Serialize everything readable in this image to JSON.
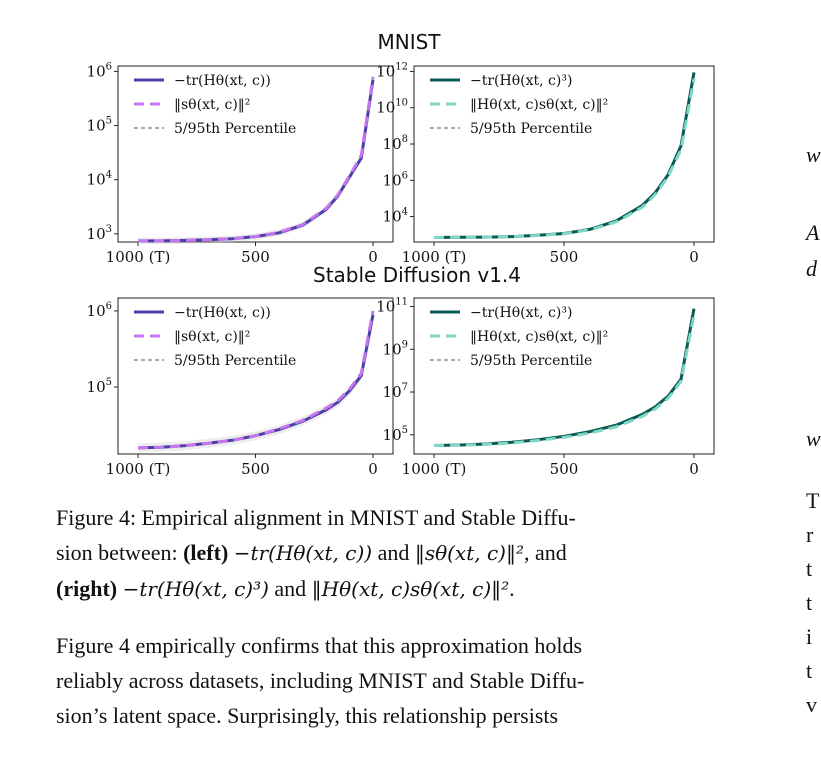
{
  "titles": {
    "mnist": "MNIST",
    "sd": "Stable Diffusion v1.4"
  },
  "chart_data": [
    {
      "type": "line",
      "x_ticks": [
        "1000 (T)",
        "500",
        "0"
      ],
      "xlim": [
        1000,
        0
      ],
      "y_scale": "log",
      "y_ticks": [
        "10^3",
        "10^4",
        "10^5",
        "10^6"
      ],
      "ylim_exp": [
        2.85,
        6.1
      ],
      "legend": [
        "−tr(Hθ(xt, c))",
        "‖sθ(xt, c)‖²",
        "5/95th Percentile"
      ],
      "series": [
        {
          "name": "−tr(Hθ(xt, c))",
          "color": "#4b3fa8",
          "x": [
            1000,
            900,
            800,
            700,
            600,
            500,
            400,
            300,
            200,
            150,
            100,
            50,
            0
          ],
          "y_exp": [
            2.87,
            2.87,
            2.88,
            2.89,
            2.91,
            2.95,
            3.02,
            3.16,
            3.45,
            3.7,
            4.05,
            4.4,
            5.85
          ]
        },
        {
          "name": "‖sθ(xt, c)‖²",
          "color": "#c576ee",
          "x": [
            1000,
            900,
            800,
            700,
            600,
            500,
            400,
            300,
            200,
            150,
            100,
            50,
            0
          ],
          "y_exp": [
            2.87,
            2.87,
            2.88,
            2.89,
            2.91,
            2.95,
            3.03,
            3.17,
            3.47,
            3.72,
            4.07,
            4.45,
            5.9
          ]
        }
      ]
    },
    {
      "type": "line",
      "x_ticks": [
        "1000 (T)",
        "500",
        "0"
      ],
      "xlim": [
        1000,
        0
      ],
      "y_scale": "log",
      "y_ticks": [
        "10^4",
        "10^6",
        "10^8",
        "10^10",
        "10^12"
      ],
      "ylim_exp": [
        2.6,
        12.3
      ],
      "legend": [
        "−tr(Hθ(xt, c)³)",
        "‖Hθ(xt, c)sθ(xt, c)‖²",
        "5/95th Percentile"
      ],
      "series": [
        {
          "name": "−tr(Hθ(xt, c)³)",
          "color": "#0b5a55",
          "x": [
            1000,
            900,
            800,
            700,
            600,
            500,
            400,
            300,
            200,
            150,
            100,
            50,
            0
          ],
          "y_exp": [
            2.85,
            2.86,
            2.87,
            2.9,
            2.97,
            3.07,
            3.3,
            3.75,
            4.6,
            5.3,
            6.3,
            7.9,
            11.95
          ]
        },
        {
          "name": "‖Hθ(xt, c)sθ(xt, c)‖²",
          "color": "#7fd8c4",
          "x": [
            1000,
            900,
            800,
            700,
            600,
            500,
            400,
            300,
            200,
            150,
            100,
            50,
            0
          ],
          "y_exp": [
            2.85,
            2.86,
            2.87,
            2.9,
            2.96,
            3.06,
            3.27,
            3.7,
            4.5,
            5.2,
            6.2,
            7.7,
            11.6
          ]
        }
      ]
    },
    {
      "type": "line",
      "x_ticks": [
        "1000 (T)",
        "500",
        "0"
      ],
      "xlim": [
        1000,
        0
      ],
      "y_scale": "log",
      "y_ticks": [
        "10^5",
        "10^6"
      ],
      "ylim_exp": [
        4.12,
        6.17
      ],
      "legend": [
        "−tr(Hθ(xt, c))",
        "‖sθ(xt, c)‖²",
        "5/95th Percentile"
      ],
      "series": [
        {
          "name": "−tr(Hθ(xt, c))",
          "color": "#4b3fa8",
          "x": [
            1000,
            900,
            800,
            700,
            600,
            500,
            400,
            300,
            200,
            150,
            100,
            50,
            0
          ],
          "y_exp": [
            4.2,
            4.21,
            4.23,
            4.26,
            4.3,
            4.36,
            4.44,
            4.55,
            4.7,
            4.8,
            4.95,
            5.15,
            5.95
          ]
        },
        {
          "name": "‖sθ(xt, c)‖²",
          "color": "#c576ee",
          "x": [
            1000,
            900,
            800,
            700,
            600,
            500,
            400,
            300,
            200,
            150,
            100,
            50,
            0
          ],
          "y_exp": [
            4.2,
            4.21,
            4.23,
            4.26,
            4.3,
            4.36,
            4.45,
            4.56,
            4.72,
            4.82,
            4.97,
            5.18,
            6.0
          ]
        }
      ]
    },
    {
      "type": "line",
      "x_ticks": [
        "1000 (T)",
        "500",
        "0"
      ],
      "xlim": [
        1000,
        0
      ],
      "y_scale": "log",
      "y_ticks": [
        "10^5",
        "10^7",
        "10^9",
        "10^11"
      ],
      "ylim_exp": [
        4.1,
        11.4
      ],
      "legend": [
        "−tr(Hθ(xt, c)³)",
        "‖Hθ(xt, c)sθ(xt, c)‖²",
        "5/95th Percentile"
      ],
      "series": [
        {
          "name": "−tr(Hθ(xt, c)³)",
          "color": "#0b5a55",
          "x": [
            1000,
            900,
            800,
            700,
            600,
            500,
            400,
            300,
            200,
            150,
            100,
            50,
            0
          ],
          "y_exp": [
            4.5,
            4.52,
            4.57,
            4.65,
            4.77,
            4.93,
            5.15,
            5.45,
            5.95,
            6.3,
            6.8,
            7.6,
            10.9
          ]
        },
        {
          "name": "‖Hθ(xt, c)sθ(xt, c)‖²",
          "color": "#7fd8c4",
          "x": [
            1000,
            900,
            800,
            700,
            600,
            500,
            400,
            300,
            200,
            150,
            100,
            50,
            0
          ],
          "y_exp": [
            4.5,
            4.51,
            4.55,
            4.62,
            4.73,
            4.88,
            5.08,
            5.37,
            5.85,
            6.2,
            6.7,
            7.5,
            10.6
          ]
        }
      ]
    }
  ],
  "caption": {
    "line1_pre": "Figure 4: Empirical alignment in MNIST and Stable Diffu-",
    "line2_a": "sion between: ",
    "line2_bold": "(left)",
    "line2_math1": "−tr(Hθ(xt, c))",
    "line2_and": " and ",
    "line2_math2": "‖sθ(xt, c)‖²",
    "line2_end": ", and",
    "line3_bold": "(right)",
    "line3_math1": "−tr(Hθ(xt, c)³)",
    "line3_and": " and ",
    "line3_math2": "‖Hθ(xt, c)sθ(xt, c)‖²",
    "line3_end": "."
  },
  "body": {
    "line1": "Figure 4 empirically confirms that this approximation holds",
    "line2": "reliably across datasets, including MNIST and Stable Diffu-",
    "line3": "sion’s latent space.  Surprisingly, this relationship persists"
  },
  "right_column_clipped": [
    "w",
    "A",
    "d",
    "w",
    "T",
    "r",
    "t",
    "t",
    "i",
    "t",
    "v"
  ]
}
